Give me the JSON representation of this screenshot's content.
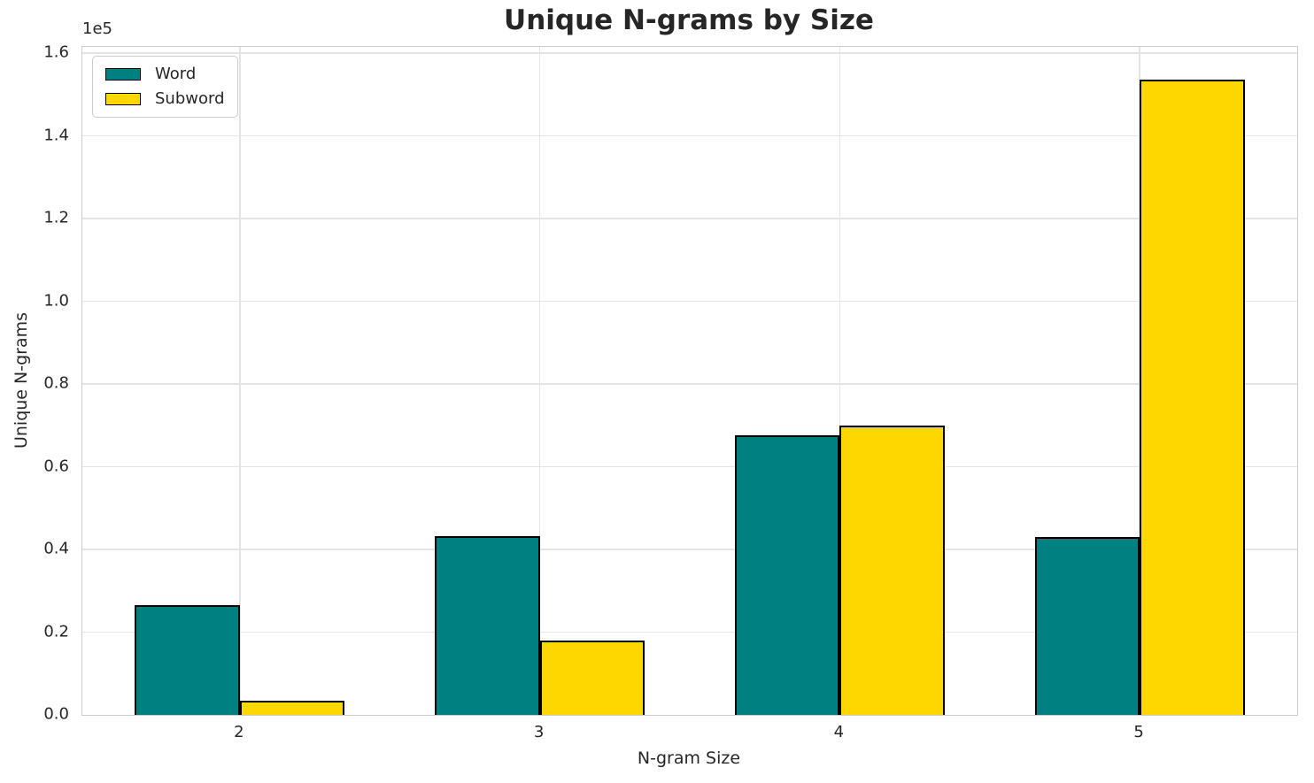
{
  "chart_data": {
    "type": "bar",
    "title": "Unique N-grams by Size",
    "xlabel": "N-gram Size",
    "ylabel": "Unique N-grams",
    "offset_text": "1e5",
    "categories": [
      "2",
      "3",
      "4",
      "5"
    ],
    "series": [
      {
        "name": "Word",
        "color": "#008080",
        "values": [
          26500,
          43300,
          67500,
          43000
        ]
      },
      {
        "name": "Subword",
        "color": "#FFD700",
        "values": [
          3400,
          18000,
          70000,
          153500
        ]
      }
    ],
    "bar_edge_color": "#000000",
    "ylim": [
      0,
      161500
    ],
    "yticks": [
      0,
      20000,
      40000,
      60000,
      80000,
      100000,
      120000,
      140000,
      160000
    ],
    "ytick_labels": [
      "0.0",
      "0.2",
      "0.4",
      "0.6",
      "0.8",
      "1.0",
      "1.2",
      "1.4",
      "1.6"
    ],
    "grid": true,
    "legend_position": "upper left"
  },
  "colors": {
    "grid": "#e4e4e4",
    "spine": "#cccccc",
    "text": "#262626",
    "background": "#ffffff"
  }
}
